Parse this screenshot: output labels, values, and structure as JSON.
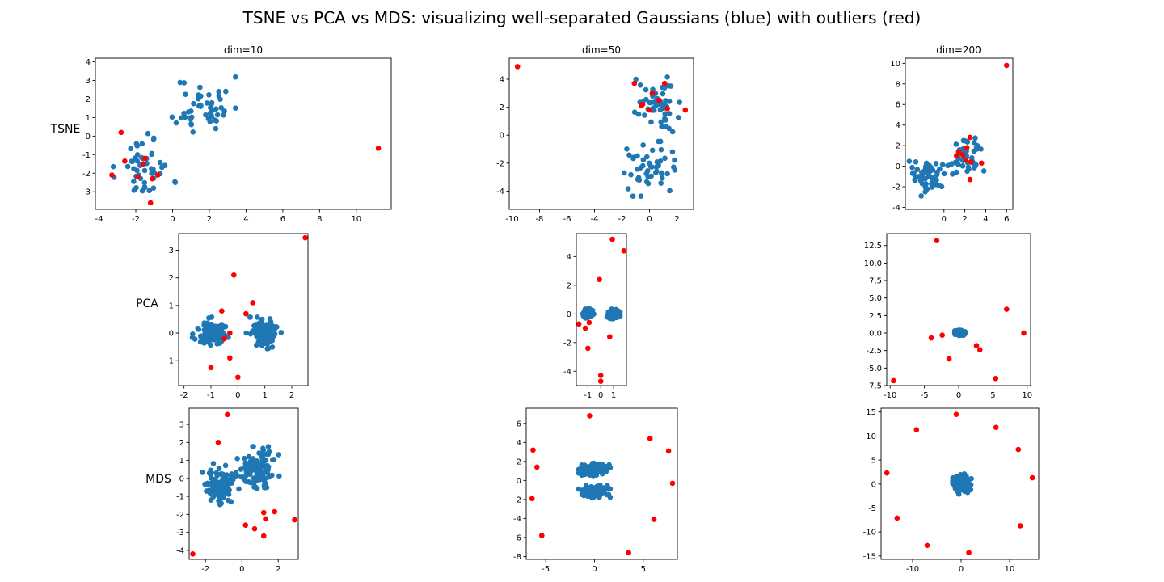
{
  "figure": {
    "title": "TSNE vs PCA vs MDS: visualizing well-separated Gaussians (blue) with outliers (red)",
    "colors": {
      "inlier": "#1f77b4",
      "outlier": "#ff0000",
      "axes": "#000000",
      "background": "#ffffff"
    },
    "row_labels": [
      "TSNE",
      "PCA",
      "MDS"
    ],
    "column_titles": [
      "dim=10",
      "dim=50",
      "dim=200"
    ]
  },
  "chart_data": [
    {
      "type": "scatter",
      "method": "TSNE",
      "title": "dim=10",
      "ylabel": "TSNE",
      "xlim": [
        -4.2,
        11.9
      ],
      "ylim": [
        -3.95,
        4.2
      ],
      "xticks": [
        -4,
        -2,
        0,
        2,
        4,
        6,
        8,
        10
      ],
      "yticks": [
        -3,
        -2,
        -1,
        0,
        1,
        2,
        3,
        4
      ],
      "series": [
        {
          "values": {
            "gen": "blobs",
            "seed": 11,
            "n": 50,
            "centers": [
              [
                1.7,
                1.6
              ],
              [
                -1.5,
                -1.7
              ]
            ],
            "spread": [
              0.75,
              0.8
            ]
          }
        },
        {
          "values": [
            [
              11.2,
              -0.65
            ],
            [
              -1.2,
              -3.6
            ],
            [
              -2.8,
              0.2
            ],
            [
              -3.3,
              -2.1
            ],
            [
              -2.6,
              -1.35
            ],
            [
              -1.6,
              -1.5
            ],
            [
              -1.5,
              -1.2
            ],
            [
              -0.8,
              -2.1
            ],
            [
              -1.1,
              -2.3
            ],
            [
              -1.9,
              -2.2
            ]
          ]
        }
      ]
    },
    {
      "type": "scatter",
      "method": "TSNE",
      "title": "dim=50",
      "xlim": [
        -10.2,
        3.2
      ],
      "ylim": [
        -5.3,
        5.5
      ],
      "xticks": [
        -10,
        -8,
        -6,
        -4,
        -2,
        0,
        2
      ],
      "yticks": [
        -4,
        -2,
        0,
        2,
        4
      ],
      "series": [
        {
          "values": {
            "gen": "blobs",
            "seed": 22,
            "n": 50,
            "centers": [
              [
                0.4,
                2.2
              ],
              [
                0.0,
                -2.4
              ]
            ],
            "spread": [
              0.8,
              0.85
            ]
          }
        },
        {
          "values": [
            [
              -9.6,
              4.9
            ],
            [
              2.6,
              1.8
            ],
            [
              1.1,
              3.7
            ],
            [
              -1.1,
              3.7
            ],
            [
              -0.6,
              2.1
            ],
            [
              0.0,
              1.8
            ],
            [
              0.2,
              3.0
            ],
            [
              0.7,
              2.5
            ],
            [
              1.3,
              1.9
            ],
            [
              -0.5,
              2.2
            ]
          ]
        }
      ]
    },
    {
      "type": "scatter",
      "method": "TSNE",
      "title": "dim=200",
      "xlim": [
        -3.7,
        6.6
      ],
      "ylim": [
        -4.2,
        10.5
      ],
      "xticks": [
        0,
        2,
        4,
        6
      ],
      "yticks": [
        -4,
        -2,
        0,
        2,
        4,
        6,
        8,
        10
      ],
      "series": [
        {
          "values": {
            "gen": "blobs",
            "seed": 33,
            "n": 50,
            "centers": [
              [
                -1.6,
                -1.1
              ],
              [
                2.1,
                0.9
              ]
            ],
            "spread": [
              0.75,
              0.8
            ]
          }
        },
        {
          "values": [
            [
              6.0,
              9.8
            ],
            [
              2.5,
              2.8
            ],
            [
              2.5,
              -1.3
            ],
            [
              3.6,
              0.3
            ],
            [
              1.4,
              1.4
            ],
            [
              2.2,
              1.8
            ],
            [
              1.8,
              1.1
            ],
            [
              2.6,
              0.4
            ],
            [
              2.1,
              0.6
            ],
            [
              1.2,
              1.0
            ]
          ]
        }
      ]
    },
    {
      "type": "scatter",
      "method": "PCA",
      "ylabel": "PCA",
      "xlim": [
        -2.2,
        2.6
      ],
      "ylim": [
        -1.9,
        3.6
      ],
      "xticks": [
        -2,
        -1,
        0,
        1,
        2
      ],
      "yticks": [
        -1,
        0,
        1,
        2,
        3
      ],
      "series": [
        {
          "values": {
            "gen": "blobs",
            "seed": 44,
            "n": 100,
            "centers": [
              [
                -1.0,
                0.0
              ],
              [
                1.0,
                0.0
              ]
            ],
            "spread": [
              0.3,
              0.25
            ]
          }
        },
        {
          "values": [
            [
              2.5,
              3.45
            ],
            [
              -0.15,
              2.1
            ],
            [
              0.55,
              1.1
            ],
            [
              0.3,
              0.7
            ],
            [
              -0.6,
              0.8
            ],
            [
              -0.5,
              -0.2
            ],
            [
              -0.3,
              0.0
            ],
            [
              -0.3,
              -0.9
            ],
            [
              -1.0,
              -1.25
            ],
            [
              0.0,
              -1.6
            ]
          ]
        }
      ]
    },
    {
      "type": "scatter",
      "method": "PCA",
      "xlim": [
        -1.9,
        2.0
      ],
      "ylim": [
        -5.0,
        5.6
      ],
      "xticks": [
        -1,
        0,
        1
      ],
      "yticks": [
        -4,
        -2,
        0,
        2,
        4
      ],
      "series": [
        {
          "values": {
            "gen": "blobs",
            "seed": 55,
            "n": 100,
            "centers": [
              [
                -1.0,
                0.0
              ],
              [
                1.0,
                0.0
              ]
            ],
            "spread": [
              0.22,
              0.15
            ]
          }
        },
        {
          "values": [
            [
              0.9,
              5.2
            ],
            [
              1.8,
              4.4
            ],
            [
              -0.1,
              2.4
            ],
            [
              -1.7,
              -0.7
            ],
            [
              -1.2,
              -1.0
            ],
            [
              -0.9,
              -0.6
            ],
            [
              0.7,
              -1.6
            ],
            [
              -1.0,
              -2.4
            ],
            [
              0.0,
              -4.3
            ],
            [
              0.0,
              -4.7
            ]
          ]
        }
      ]
    },
    {
      "type": "scatter",
      "method": "PCA",
      "xlim": [
        -10.5,
        10.5
      ],
      "ylim": [
        -7.5,
        14.2
      ],
      "xticks": [
        -10,
        -5,
        0,
        5,
        10
      ],
      "yticks": [
        -7.5,
        -5.0,
        -2.5,
        0.0,
        2.5,
        5.0,
        7.5,
        10.0,
        12.5
      ],
      "series": [
        {
          "values": {
            "gen": "blobs",
            "seed": 66,
            "n": 100,
            "centers": [
              [
                0.0,
                0.05
              ],
              [
                0.35,
                -0.05
              ]
            ],
            "spread": [
              0.25,
              0.15
            ]
          }
        },
        {
          "values": [
            [
              -3.2,
              13.2
            ],
            [
              7.0,
              3.4
            ],
            [
              9.5,
              0.0
            ],
            [
              -2.4,
              -0.3
            ],
            [
              -4.0,
              -0.7
            ],
            [
              2.6,
              -1.8
            ],
            [
              3.1,
              -2.4
            ],
            [
              -1.4,
              -3.7
            ],
            [
              5.4,
              -6.5
            ],
            [
              -9.5,
              -6.8
            ]
          ]
        }
      ]
    },
    {
      "type": "scatter",
      "method": "MDS",
      "ylabel": "MDS",
      "xlim": [
        -2.9,
        3.1
      ],
      "ylim": [
        -4.5,
        3.9
      ],
      "xticks": [
        -2,
        0,
        2
      ],
      "yticks": [
        -4,
        -3,
        -2,
        -1,
        0,
        1,
        2,
        3
      ],
      "series": [
        {
          "values": {
            "gen": "blobs",
            "seed": 77,
            "n": 100,
            "centers": [
              [
                -1.2,
                -0.4
              ],
              [
                0.9,
                0.5
              ]
            ],
            "spread": [
              0.5,
              0.55
            ]
          }
        },
        {
          "values": [
            [
              -0.8,
              3.55
            ],
            [
              -1.3,
              2.0
            ],
            [
              -2.7,
              -4.2
            ],
            [
              0.2,
              -2.6
            ],
            [
              0.7,
              -2.8
            ],
            [
              1.2,
              -1.9
            ],
            [
              1.3,
              -2.25
            ],
            [
              1.8,
              -1.85
            ],
            [
              1.2,
              -3.2
            ],
            [
              2.9,
              -2.3
            ]
          ]
        }
      ]
    },
    {
      "type": "scatter",
      "method": "MDS",
      "xlim": [
        -7.0,
        8.5
      ],
      "ylim": [
        -8.3,
        7.6
      ],
      "xticks": [
        -5,
        0,
        5
      ],
      "yticks": [
        -8,
        -6,
        -4,
        -2,
        0,
        2,
        4,
        6
      ],
      "series": [
        {
          "values": {
            "gen": "blobs",
            "seed": 88,
            "n": 100,
            "centers": [
              [
                0.0,
                1.2
              ],
              [
                0.0,
                -1.2
              ]
            ],
            "spread": [
              0.7,
              0.3
            ]
          }
        },
        {
          "values": [
            [
              -0.5,
              6.8
            ],
            [
              5.7,
              4.4
            ],
            [
              7.6,
              3.1
            ],
            [
              -6.3,
              3.2
            ],
            [
              -5.9,
              1.4
            ],
            [
              8.0,
              -0.3
            ],
            [
              -6.4,
              -1.9
            ],
            [
              6.1,
              -4.1
            ],
            [
              -5.4,
              -5.8
            ],
            [
              3.5,
              -7.6
            ]
          ]
        }
      ]
    },
    {
      "type": "scatter",
      "method": "MDS",
      "xlim": [
        -16.5,
        16.0
      ],
      "ylim": [
        -15.7,
        15.8
      ],
      "xticks": [
        -10,
        0,
        10
      ],
      "yticks": [
        -15,
        -10,
        -5,
        0,
        5,
        10,
        15
      ],
      "series": [
        {
          "values": {
            "gen": "blobs",
            "seed": 99,
            "n": 100,
            "centers": [
              [
                -0.5,
                0.5
              ],
              [
                0.5,
                -0.5
              ]
            ],
            "spread": [
              0.7,
              0.7
            ]
          }
        },
        {
          "values": [
            [
              -1.0,
              14.5
            ],
            [
              7.2,
              11.8
            ],
            [
              -9.2,
              11.3
            ],
            [
              11.8,
              7.2
            ],
            [
              -15.3,
              2.3
            ],
            [
              14.7,
              1.3
            ],
            [
              -13.2,
              -7.1
            ],
            [
              12.2,
              -8.7
            ],
            [
              -7.0,
              -12.8
            ],
            [
              1.6,
              -14.3
            ]
          ]
        }
      ]
    }
  ]
}
